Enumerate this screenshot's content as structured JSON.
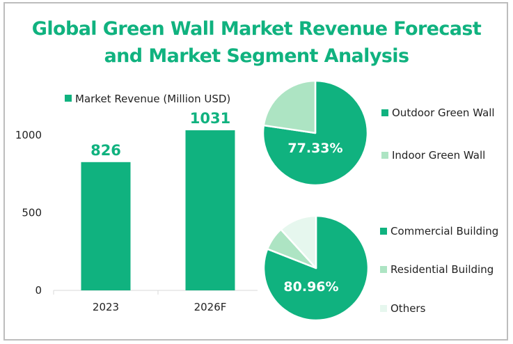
{
  "title_line1": "Global Green Wall Market Revenue Forecast",
  "title_line2": "and Market Segment Analysis",
  "colors": {
    "primary": "#10b27f",
    "light": "#ade4c3",
    "lighter": "#e6f7ee",
    "title": "#10b27f"
  },
  "chart_data": [
    {
      "type": "bar",
      "title": "",
      "legend": "Market Revenue (Million USD)",
      "legend_position": "top",
      "categories": [
        "2023",
        "2026F"
      ],
      "values": [
        826,
        1031
      ],
      "value_labels": [
        "826",
        "1031"
      ],
      "ylim": [
        0,
        1000
      ],
      "yticks": [
        0,
        500,
        1000
      ],
      "ytick_labels": [
        "0",
        "500",
        "1000"
      ],
      "xlabel": "",
      "ylabel": "",
      "grid": false
    },
    {
      "type": "pie",
      "title": "",
      "labels": [
        "Outdoor Green Wall",
        "Indoor Green Wall"
      ],
      "values": [
        77.33,
        22.67
      ],
      "shown_label": "77.33%",
      "legend_position": "right"
    },
    {
      "type": "pie",
      "title": "",
      "labels": [
        "Commercial Building",
        "Residential Building",
        "Others"
      ],
      "values": [
        80.96,
        7.3,
        11.74
      ],
      "shown_label": "80.96%",
      "legend_position": "right"
    }
  ]
}
